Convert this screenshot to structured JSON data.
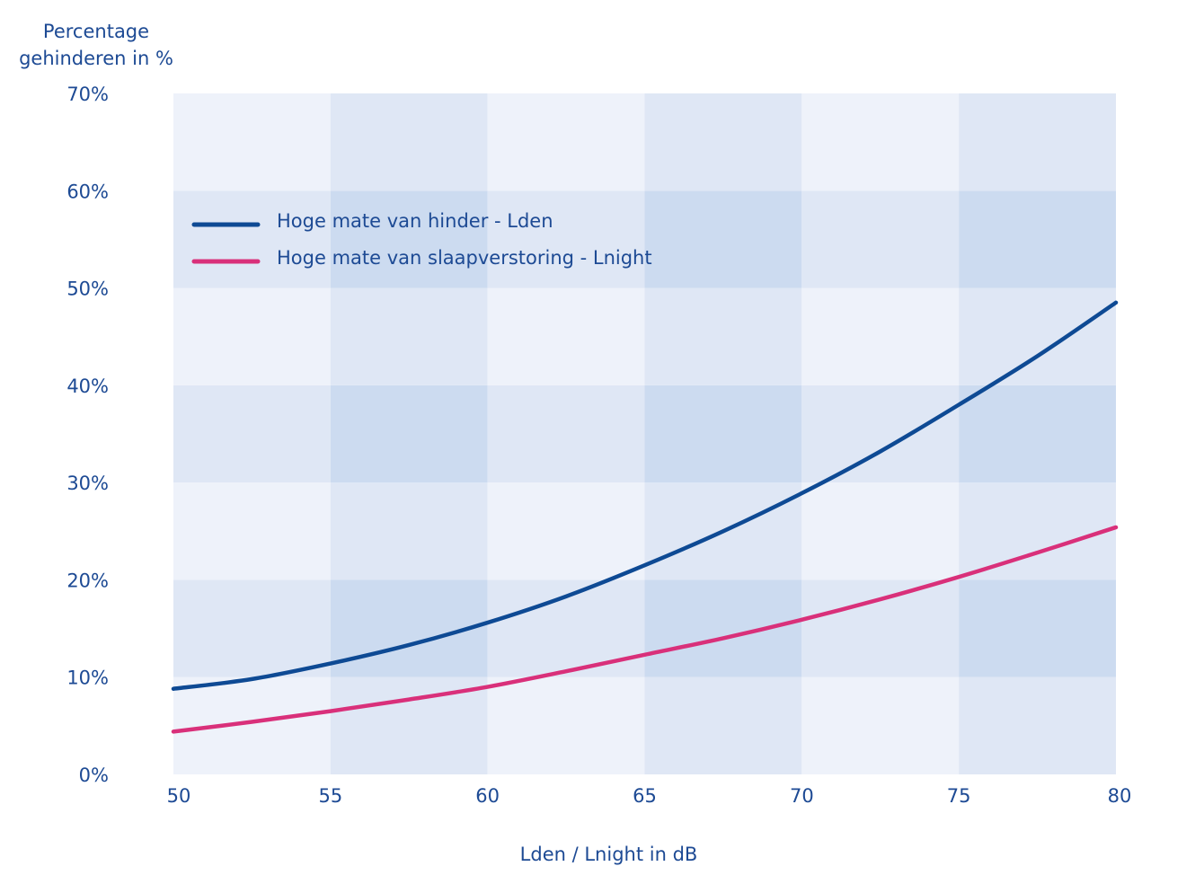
{
  "chart_data": {
    "type": "line",
    "title": "",
    "ylabel_lines": [
      "Percentage",
      "gehinderen in %"
    ],
    "xlabel": "Lden / Lnight in dB",
    "xlim": [
      50,
      80
    ],
    "ylim": [
      0,
      70
    ],
    "x_ticks": [
      "50",
      "55",
      "60",
      "65",
      "70",
      "75",
      "80"
    ],
    "y_ticks": [
      "0%",
      "10%",
      "20%",
      "30%",
      "40%",
      "50%",
      "60%",
      "70%"
    ],
    "grid": false,
    "legend_position": "top-left",
    "colors": {
      "band_light": "#eef2fa",
      "band_mid": "#dfe7f5",
      "band_dark": "#ccdbf0",
      "text": "#1d4a94"
    },
    "x": [
      50,
      52.5,
      55,
      57.5,
      60,
      62.5,
      65,
      67.5,
      70,
      72.5,
      75,
      77.5,
      80
    ],
    "series": [
      {
        "name": "Hoge mate van hinder - Lden",
        "color": "#0e4a94",
        "values": [
          8.8,
          9.8,
          11.4,
          13.3,
          15.6,
          18.3,
          21.5,
          25.0,
          28.9,
          33.2,
          38.0,
          43.0,
          48.5
        ]
      },
      {
        "name": "Hoge mate van slaapverstoring - Lnight",
        "color": "#d9307a",
        "values": [
          4.4,
          5.4,
          6.5,
          7.7,
          9.0,
          10.6,
          12.3,
          14.0,
          15.9,
          18.0,
          20.3,
          22.8,
          25.4
        ]
      }
    ]
  }
}
